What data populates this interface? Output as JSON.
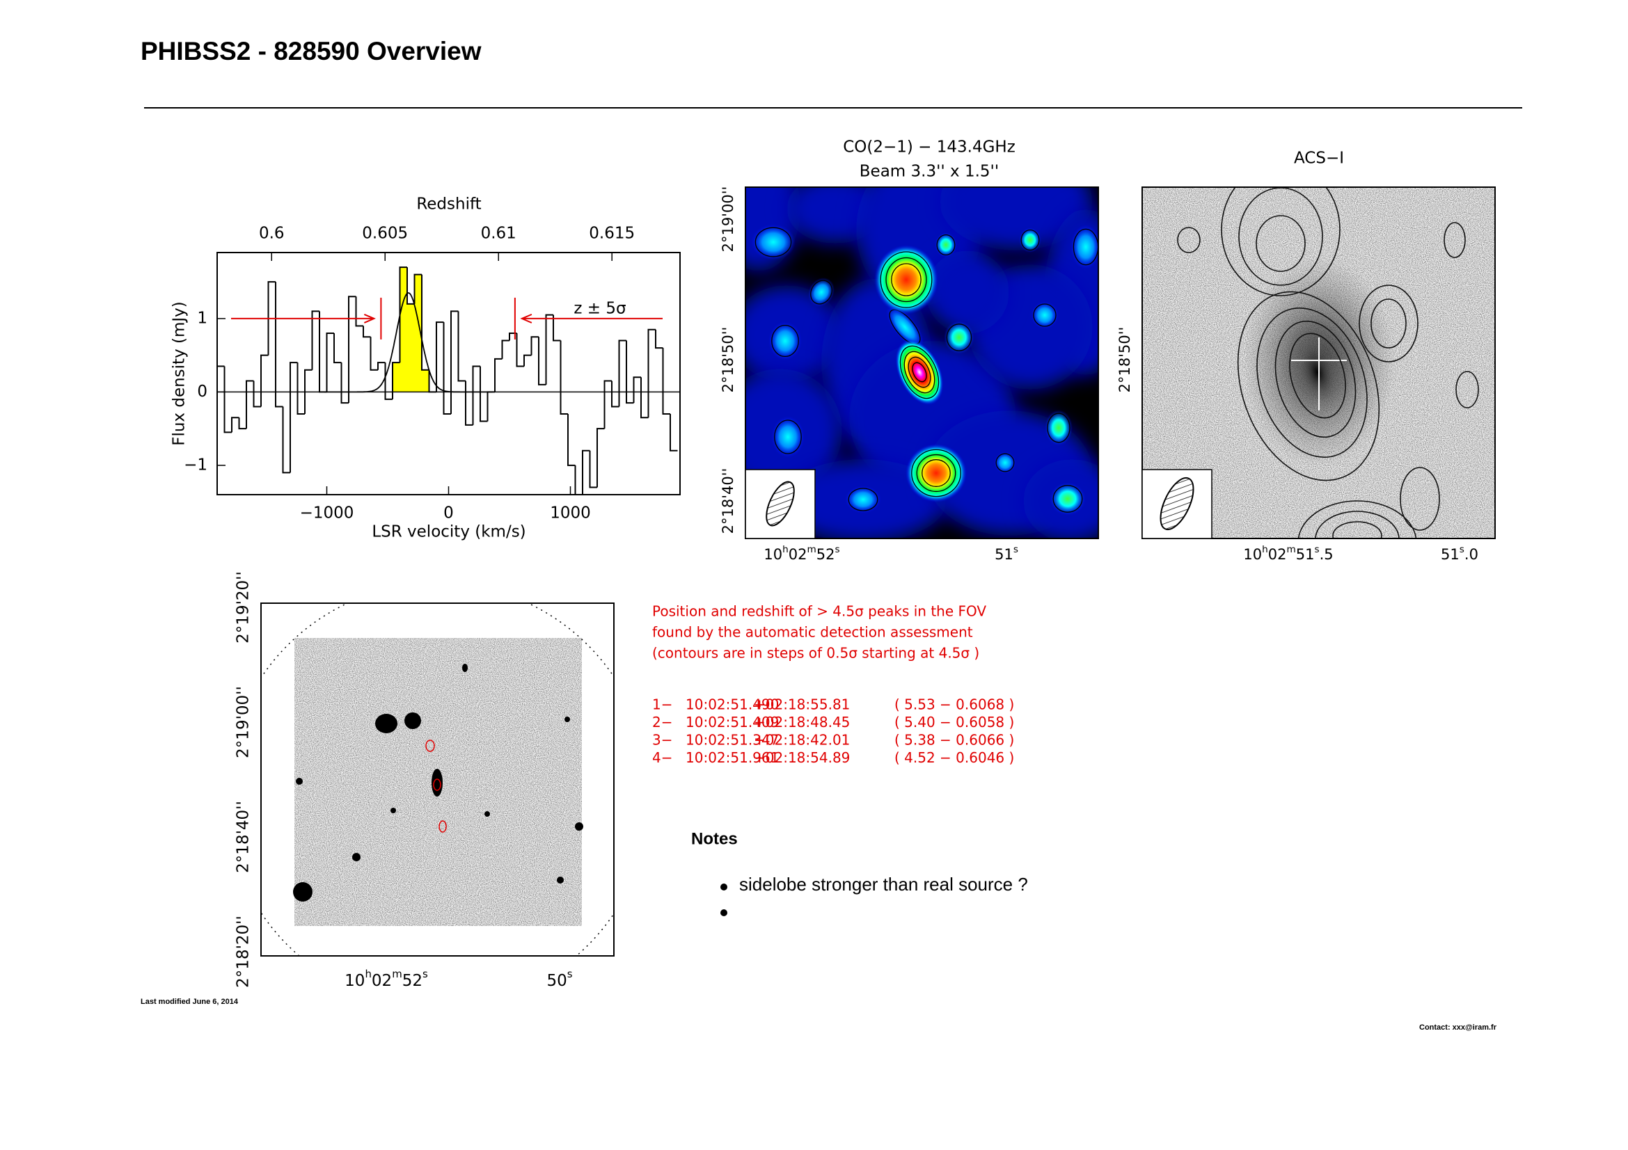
{
  "header": {
    "title": "PHIBSS2 - 828590 Overview"
  },
  "spectrum": {
    "type": "step",
    "top_axis_label": "Redshift",
    "x_label": "LSR velocity (km/s)",
    "y_label": "Flux density (mJy)",
    "annotation": "z ± 5σ",
    "x": [
      -1870,
      -1810,
      -1750,
      -1690,
      -1630,
      -1570,
      -1510,
      -1450,
      -1390,
      -1330,
      -1270,
      -1210,
      -1150,
      -1090,
      -1030,
      -970,
      -910,
      -850,
      -790,
      -730,
      -670,
      -610,
      -550,
      -490,
      -430,
      -370,
      -310,
      -250,
      -190,
      -130,
      -70,
      -10,
      50,
      110,
      170,
      230,
      290,
      350,
      410,
      470,
      530,
      590,
      650,
      710,
      770,
      830,
      890,
      950,
      1010,
      1070,
      1130,
      1190,
      1250,
      1310,
      1370,
      1430,
      1490,
      1550,
      1610,
      1670,
      1730,
      1790,
      1850
    ],
    "values": [
      0.35,
      -0.55,
      -0.35,
      -0.5,
      0.15,
      -0.2,
      0.5,
      1.5,
      -0.2,
      -1.1,
      0.4,
      -0.3,
      0.3,
      1.1,
      0.0,
      0.8,
      0.4,
      -0.15,
      1.3,
      0.9,
      0.75,
      0.3,
      0.4,
      -0.1,
      0.4,
      1.7,
      1.2,
      1.6,
      0.3,
      0.0,
      0.95,
      -0.3,
      1.1,
      0.15,
      -0.45,
      0.35,
      -0.4,
      0.0,
      0.45,
      0.7,
      0.8,
      0.35,
      0.5,
      0.75,
      0.1,
      1.05,
      0.7,
      -0.3,
      -1.0,
      -1.4,
      -0.8,
      -1.3,
      -0.5,
      0.15,
      -0.2,
      0.7,
      -0.15,
      0.2,
      -0.35,
      0.85,
      0.6,
      -0.3,
      -0.8
    ],
    "color": "#000000",
    "line_color": "#ffff00",
    "marker_color": "#e00000",
    "line_range": [
      -460,
      -160
    ],
    "fit": {
      "center": -330,
      "peak": 1.35,
      "fwhm": 230
    },
    "window": [
      -555,
      545
    ],
    "xlim": [
      -1900,
      1900
    ],
    "xticks": [
      {
        "value": -1000,
        "label": "−1000"
      },
      0,
      1000
    ],
    "ylim": [
      -1.4,
      1.9
    ],
    "yticks": [
      {
        "value": -1,
        "label": "−1"
      },
      0,
      1
    ],
    "zlim": [
      0.5976,
      0.618
    ],
    "zticks": [
      0.6,
      0.605,
      0.61,
      0.615
    ]
  },
  "co_map": {
    "title": "CO(2−1) − 143.4GHz",
    "beam": "Beam 3.3'' x 1.5''",
    "yticks": [
      "2°19'00''",
      "2°18'50''",
      "2°18'40''"
    ],
    "xticks": [
      [
        "10",
        "h",
        "02",
        "m",
        "52",
        "s"
      ],
      [
        "51",
        "s"
      ]
    ]
  },
  "acs_map": {
    "title": "ACS−I",
    "yticks": [
      "2°18'50''"
    ],
    "xticks": [
      [
        "10",
        "h",
        "02",
        "m",
        "51",
        "s",
        ".5"
      ],
      [
        "51",
        "s",
        ".0"
      ]
    ]
  },
  "fov_map": {
    "yticks": [
      "2°19'20''",
      "2°19'00''",
      "2°18'40''",
      "2°18'20''"
    ],
    "xticks": [
      [
        "10",
        "h",
        "02",
        "m",
        "52",
        "s"
      ],
      [
        "50",
        "s"
      ]
    ]
  },
  "detection": {
    "lines": [
      "Position and redshift of > 4.5σ peaks in the FOV",
      "found by the automatic detection assessment",
      "(contours are in steps of 0.5σ starting at 4.5σ )"
    ],
    "peaks": [
      [
        "1−",
        "10:02:51.490",
        "+02:18:55.81",
        "( 5.53 − 0.6068 )"
      ],
      [
        "2−",
        "10:02:51.409",
        "+02:18:48.45",
        "( 5.40 − 0.6058 )"
      ],
      [
        "3−",
        "10:02:51.347",
        "+02:18:42.01",
        "( 5.38 − 0.6066 )"
      ],
      [
        "4−",
        "10:02:51.961",
        "+02:18:54.89",
        "( 4.52 − 0.6046 )"
      ]
    ]
  },
  "notes": {
    "title": "Notes",
    "items": [
      "sidelobe stronger than real source ?"
    ]
  },
  "footer": {
    "modified": "Last modified June 6, 2014",
    "contact": "Contact: xxx@iram.fr"
  }
}
